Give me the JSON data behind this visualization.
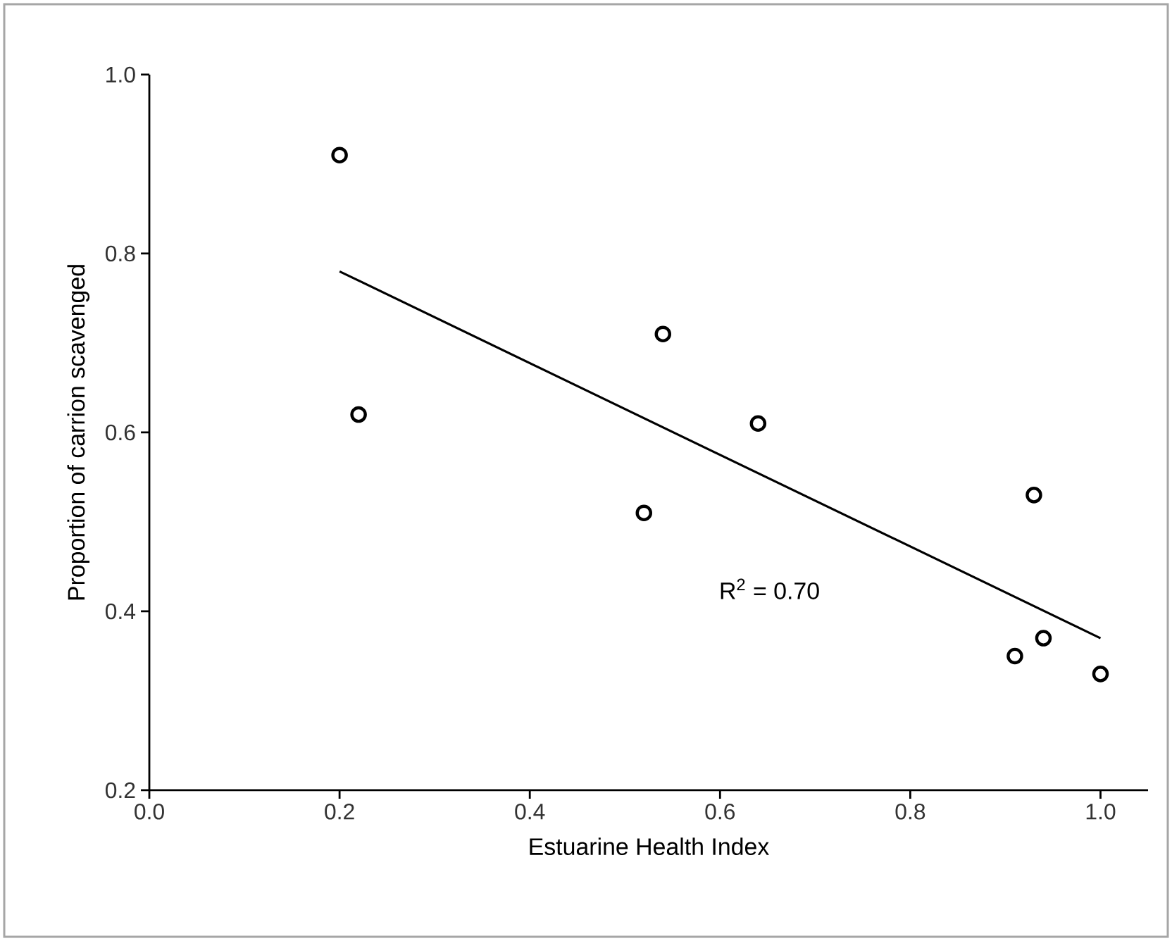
{
  "chart_data": {
    "type": "scatter",
    "xlabel": "Estuarine Health Index",
    "ylabel": "Proportion of carrion scavenged",
    "series": [
      {
        "color": "#000000",
        "marker": "circle",
        "x": [
          0.2,
          0.22,
          0.52,
          0.54,
          0.64,
          0.91,
          0.93,
          0.94,
          1.0
        ],
        "values": [
          0.91,
          0.62,
          0.51,
          0.71,
          0.61,
          0.35,
          0.53,
          0.37,
          0.33
        ]
      },
      {
        "type": "line",
        "color": "#000000",
        "marker": "none",
        "line_style": "solid",
        "x": [
          0.2,
          1.0
        ],
        "values": [
          0.78,
          0.37
        ]
      }
    ],
    "annotations": [
      "R$^{2}$ = 0.70"
    ],
    "xlim": [
      0.0,
      1.05
    ],
    "ylim": [
      0.2,
      1.0
    ],
    "xticks": [
      {
        "value": 0.0,
        "label": "0.0"
      },
      0.2,
      0.4,
      0.6,
      0.8,
      {
        "value": 1.0,
        "label": "1.0"
      }
    ],
    "yticks": [
      0.2,
      0.4,
      0.6,
      0.8,
      {
        "value": 1.0,
        "label": "1.0"
      }
    ],
    "grid": false
  }
}
